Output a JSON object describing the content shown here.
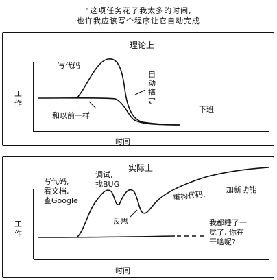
{
  "caption": {
    "line1": "“这项任务花了我太多的时间,",
    "line2": "也许我应该写个程序让它自动完成"
  },
  "panel_theory": {
    "title": "理论上",
    "y_axis": "工作",
    "x_axis": "时间",
    "write_code": "写代码",
    "auto": [
      "自",
      "动",
      "搞",
      "定"
    ],
    "before": "和以前一样",
    "off_work": "下班"
  },
  "panel_reality": {
    "title": "实际上",
    "y_axis": "工作",
    "x_axis": "时间",
    "write_code": [
      "写代码,",
      "看文档,",
      "查Google"
    ],
    "debug": [
      "调试,",
      "找BUG"
    ],
    "reflect": "反思",
    "rewrite": "重构代码,",
    "add_feature": "加新功能",
    "asleep": [
      "我都睡了一",
      "觉了, 你在",
      "干啥呢?"
    ]
  }
}
